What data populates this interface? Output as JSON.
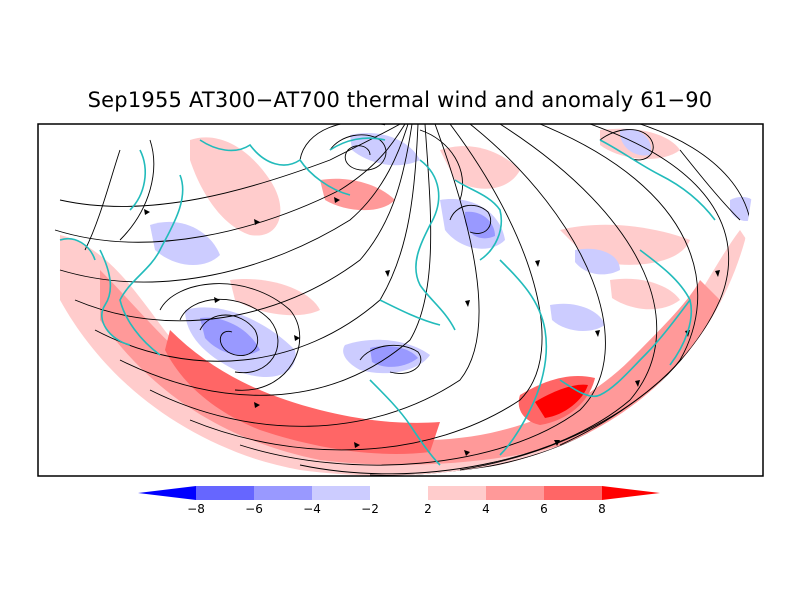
{
  "title": "Sep1955 AT300−AT700 thermal wind and anomaly 61−90",
  "colorbar": {
    "labels": [
      "−8",
      "−6",
      "−4",
      "−2",
      "2",
      "4",
      "6",
      "8"
    ],
    "colors": [
      "#0000ff",
      "#6666ff",
      "#9999ff",
      "#ccccff",
      "#ffffff",
      "#ffcccc",
      "#ff9999",
      "#ff6666",
      "#ff0000"
    ]
  },
  "colors": {
    "coastline": "#22bbbb",
    "streamline": "#000000",
    "frame": "#000000"
  }
}
